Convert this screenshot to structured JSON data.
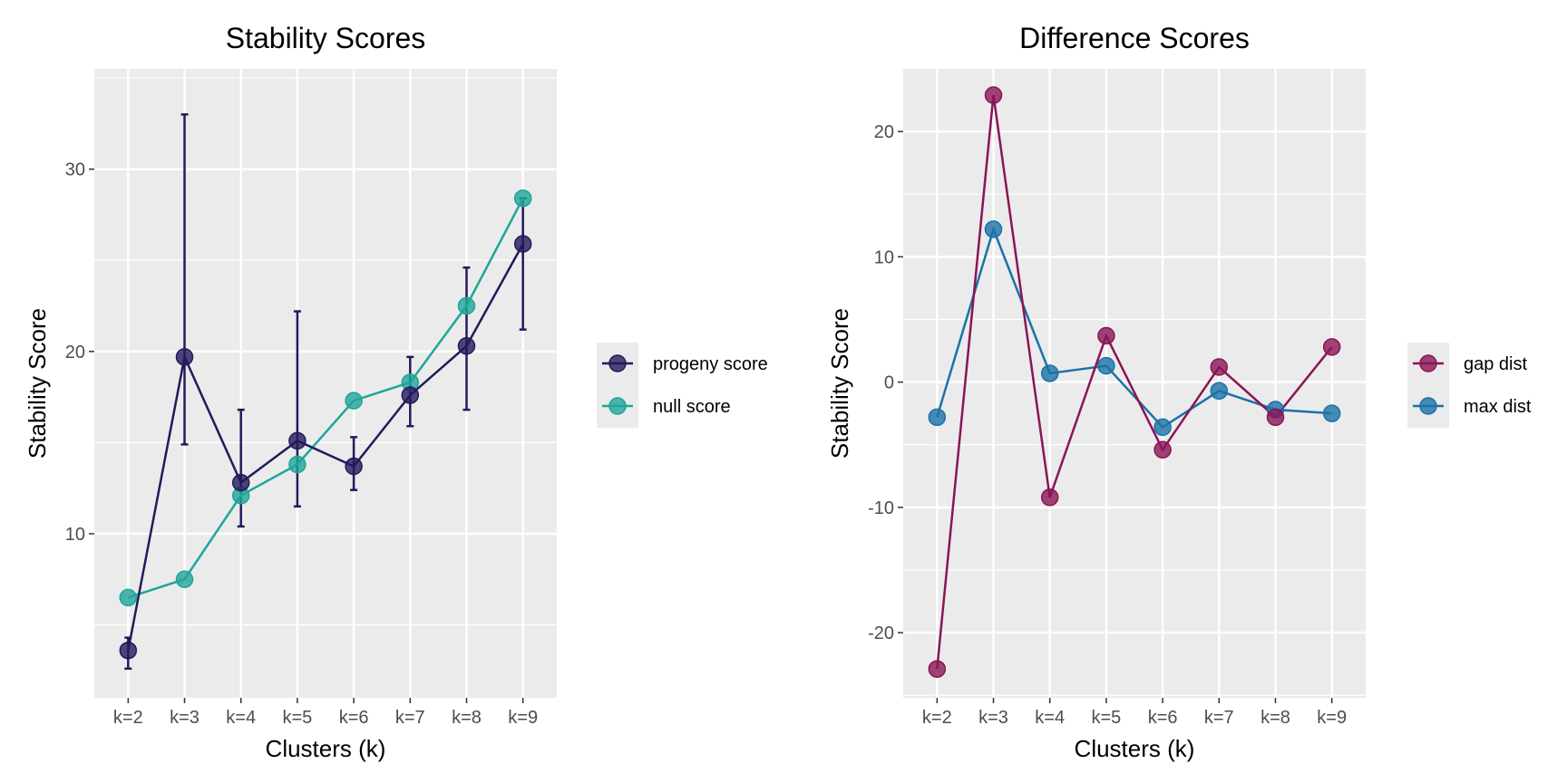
{
  "chart_data": [
    {
      "type": "line",
      "title": "Stability Scores",
      "xlabel": "Clusters (k)",
      "ylabel": "Stability Score",
      "categories": [
        "k=2",
        "k=3",
        "k=4",
        "k=5",
        "k=6",
        "k=7",
        "k=8",
        "k=9"
      ],
      "ylim": [
        1.0,
        35.5
      ],
      "yticks": [
        10,
        20,
        30
      ],
      "grid": true,
      "legend_position": "right",
      "series": [
        {
          "name": "progeny score",
          "color": "#231a5c",
          "values": [
            3.6,
            19.7,
            12.8,
            15.1,
            13.7,
            17.6,
            20.3,
            25.9
          ],
          "error_low": [
            2.6,
            14.9,
            10.4,
            11.5,
            12.4,
            15.9,
            16.8,
            21.2
          ],
          "error_high": [
            4.3,
            33.0,
            16.8,
            22.2,
            15.3,
            19.7,
            24.6,
            28.4
          ]
        },
        {
          "name": "null score",
          "color": "#1fa59a",
          "values": [
            6.5,
            7.5,
            12.1,
            13.8,
            17.3,
            18.3,
            22.5,
            28.4
          ]
        }
      ]
    },
    {
      "type": "line",
      "title": "Difference Scores",
      "xlabel": "Clusters (k)",
      "ylabel": "Stability Score",
      "categories": [
        "k=2",
        "k=3",
        "k=4",
        "k=5",
        "k=6",
        "k=7",
        "k=8",
        "k=9"
      ],
      "ylim": [
        -25.2,
        25.0
      ],
      "yticks": [
        -20,
        -10,
        0,
        10,
        20
      ],
      "ytick_labels": [
        "-20",
        "-10",
        "0",
        "10",
        "20"
      ],
      "grid": true,
      "legend_position": "right",
      "series": [
        {
          "name": "gap dist",
          "color": "#8a1556",
          "values": [
            -22.9,
            22.9,
            -9.2,
            3.7,
            -5.4,
            1.2,
            -2.8,
            2.8
          ]
        },
        {
          "name": "max dist",
          "color": "#1a72a8",
          "values": [
            -2.8,
            12.2,
            0.7,
            1.3,
            -3.6,
            -0.7,
            -2.2,
            -2.5
          ]
        }
      ]
    }
  ]
}
